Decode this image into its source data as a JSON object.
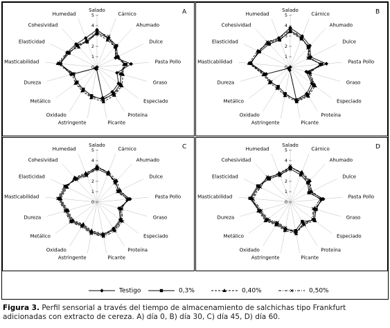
{
  "chart_data": [
    {
      "type": "radar",
      "title": "A",
      "categories": [
        "Salado",
        "Cárnico",
        "Ahumado",
        "Dulce",
        "Pasta Pollo",
        "Graso",
        "Especiado",
        "Proteína",
        "Picante",
        "Astringente",
        "Oxidado",
        "Metálico",
        "Dureza",
        "Masticabilidad",
        "Elasticidad",
        "Cohesividad",
        "Humedad"
      ],
      "rlim": [
        0,
        5
      ],
      "rticks": [
        0,
        1,
        2,
        3,
        4,
        5
      ],
      "series": [
        {
          "name": "Testigo",
          "color": "#000000",
          "marker": "diamond",
          "line_style": "solid",
          "values": [
            3.6,
            3.0,
            2.6,
            2.0,
            3.3,
            2.0,
            2.6,
            2.8,
            3.0,
            0.2,
            0.0,
            0.2,
            2.6,
            3.5,
            3.2,
            3.0,
            3.0
          ]
        },
        {
          "name": "0,3%",
          "color": "#000000",
          "marker": "square",
          "line_style": "solid",
          "values": [
            3.3,
            3.0,
            2.8,
            2.2,
            2.8,
            2.4,
            2.8,
            3.0,
            3.2,
            2.8,
            2.5,
            2.4,
            2.4,
            3.6,
            3.0,
            2.8,
            2.6
          ]
        },
        {
          "name": "0,40%",
          "color": "#000000",
          "marker": "triangle",
          "line_style": "dashed",
          "values": [
            3.2,
            2.8,
            2.6,
            2.3,
            2.6,
            2.6,
            3.0,
            3.2,
            3.4,
            3.0,
            2.7,
            2.6,
            2.5,
            3.8,
            3.2,
            2.6,
            2.8
          ]
        },
        {
          "name": "0,50%",
          "color": "#000000",
          "marker": "x",
          "line_style": "dashdot",
          "values": [
            3.4,
            3.2,
            2.7,
            2.1,
            2.7,
            2.3,
            2.9,
            3.1,
            3.1,
            2.9,
            2.6,
            2.5,
            2.3,
            3.7,
            3.1,
            2.9,
            2.7
          ]
        }
      ]
    },
    {
      "type": "radar",
      "title": "B",
      "categories": [
        "Salado",
        "Cárnico",
        "Ahumado",
        "Dulce",
        "Pasta Pollo",
        "Graso",
        "Especiado",
        "Proteína",
        "Picante",
        "Astringente",
        "Oxidado",
        "Metálico",
        "Dureza",
        "Masticabilidad",
        "Elasticidad",
        "Cohesividad",
        "Humedad"
      ],
      "rlim": [
        0,
        5
      ],
      "rticks": [
        0,
        1,
        2,
        3,
        4,
        5
      ],
      "series": [
        {
          "name": "Testigo",
          "color": "#000000",
          "marker": "diamond",
          "line_style": "solid",
          "values": [
            3.8,
            3.2,
            2.8,
            2.2,
            3.5,
            1.6,
            2.6,
            3.0,
            3.2,
            0.3,
            0.0,
            0.2,
            2.4,
            3.8,
            3.4,
            3.2,
            3.0
          ]
        },
        {
          "name": "0,3%",
          "color": "#000000",
          "marker": "square",
          "line_style": "solid",
          "values": [
            3.5,
            3.0,
            2.6,
            2.0,
            3.0,
            1.8,
            2.8,
            3.2,
            3.3,
            2.6,
            2.2,
            2.4,
            2.6,
            3.9,
            3.3,
            3.0,
            2.8
          ]
        },
        {
          "name": "0,40%",
          "color": "#000000",
          "marker": "triangle",
          "line_style": "dashed",
          "values": [
            3.4,
            2.9,
            2.7,
            2.1,
            2.9,
            2.0,
            3.0,
            3.3,
            3.4,
            2.8,
            2.4,
            2.5,
            2.7,
            4.0,
            3.5,
            3.1,
            2.9
          ]
        },
        {
          "name": "0,50%",
          "color": "#000000",
          "marker": "x",
          "line_style": "dashdot",
          "values": [
            3.6,
            3.1,
            2.5,
            1.9,
            3.1,
            1.9,
            2.9,
            3.1,
            3.2,
            2.7,
            2.3,
            2.3,
            2.5,
            3.8,
            3.4,
            3.3,
            3.0
          ]
        }
      ]
    },
    {
      "type": "radar",
      "title": "C",
      "categories": [
        "Salado",
        "Cárnico",
        "Ahumado",
        "Dulce",
        "Pasta Pollo",
        "Graso",
        "Especiado",
        "Proteína",
        "Picante",
        "Astringente",
        "Oxidado",
        "Metálico",
        "Dureza",
        "Masticabilidad",
        "Elasticidad",
        "Cohesividad",
        "Humedad"
      ],
      "rlim": [
        0,
        5
      ],
      "rticks": [
        0,
        1,
        2,
        3,
        4,
        5
      ],
      "series": [
        {
          "name": "Testigo",
          "color": "#000000",
          "marker": "diamond",
          "line_style": "solid",
          "values": [
            3.4,
            3.0,
            2.6,
            2.4,
            3.2,
            2.2,
            2.8,
            3.0,
            3.2,
            2.9,
            2.6,
            3.0,
            3.0,
            3.6,
            3.3,
            3.1,
            2.9
          ]
        },
        {
          "name": "0,3%",
          "color": "#000000",
          "marker": "square",
          "line_style": "solid",
          "values": [
            3.2,
            2.9,
            2.7,
            2.3,
            3.0,
            2.4,
            2.9,
            3.1,
            3.3,
            3.0,
            2.7,
            3.1,
            3.1,
            3.7,
            3.4,
            3.0,
            2.8
          ]
        },
        {
          "name": "0,40%",
          "color": "#000000",
          "marker": "triangle",
          "line_style": "dashed",
          "values": [
            3.3,
            3.1,
            2.8,
            2.5,
            3.1,
            2.3,
            3.0,
            3.2,
            3.1,
            2.8,
            2.5,
            2.9,
            2.9,
            3.5,
            3.2,
            3.2,
            3.0
          ]
        },
        {
          "name": "0,50%",
          "color": "#000000",
          "marker": "x",
          "line_style": "dashdot",
          "values": [
            3.5,
            3.0,
            2.5,
            2.2,
            2.9,
            2.5,
            3.1,
            3.3,
            3.4,
            3.1,
            2.8,
            3.2,
            3.2,
            3.8,
            3.5,
            2.9,
            2.7
          ]
        }
      ]
    },
    {
      "type": "radar",
      "title": "D",
      "categories": [
        "Salado",
        "Cárnico",
        "Ahumado",
        "Dulce",
        "Pasta Pollo",
        "Graso",
        "Especiado",
        "Proteína",
        "Picante",
        "Astringente",
        "Oxidado",
        "Metálico",
        "Dureza",
        "Masticabilidad",
        "Elasticidad",
        "Cohesividad",
        "Humedad"
      ],
      "rlim": [
        0,
        5
      ],
      "rticks": [
        0,
        1,
        2,
        3,
        4,
        5
      ],
      "series": [
        {
          "name": "Testigo",
          "color": "#000000",
          "marker": "diamond",
          "line_style": "solid",
          "values": [
            3.4,
            3.0,
            2.7,
            2.2,
            3.2,
            2.4,
            2.8,
            2.4,
            3.0,
            2.6,
            2.4,
            2.8,
            3.0,
            3.8,
            3.4,
            3.2,
            2.9
          ]
        },
        {
          "name": "0,3%",
          "color": "#000000",
          "marker": "square",
          "line_style": "solid",
          "values": [
            3.2,
            2.8,
            2.5,
            2.0,
            3.0,
            2.6,
            2.9,
            2.2,
            2.8,
            2.7,
            2.5,
            2.9,
            3.1,
            3.9,
            3.5,
            3.0,
            2.8
          ]
        },
        {
          "name": "0,40%",
          "color": "#000000",
          "marker": "triangle",
          "line_style": "dashed",
          "values": [
            3.3,
            3.1,
            2.8,
            2.3,
            3.1,
            2.5,
            3.0,
            2.5,
            3.1,
            2.8,
            2.6,
            3.0,
            3.2,
            3.7,
            3.3,
            3.1,
            3.0
          ]
        },
        {
          "name": "0,50%",
          "color": "#000000",
          "marker": "x",
          "line_style": "dashdot",
          "values": [
            3.5,
            2.9,
            2.6,
            2.1,
            2.9,
            2.3,
            2.7,
            2.6,
            2.9,
            2.5,
            2.3,
            2.7,
            2.9,
            3.6,
            3.2,
            3.3,
            2.7
          ]
        }
      ]
    }
  ],
  "caption": {
    "label": "Figura 3.",
    "text": "Perfil sensorial a través del tiempo de almacenamiento de salchichas tipo Frankfurt adicionadas con extracto de cereza. A) día 0, B) día 30, C) día 45, D) día 60."
  }
}
